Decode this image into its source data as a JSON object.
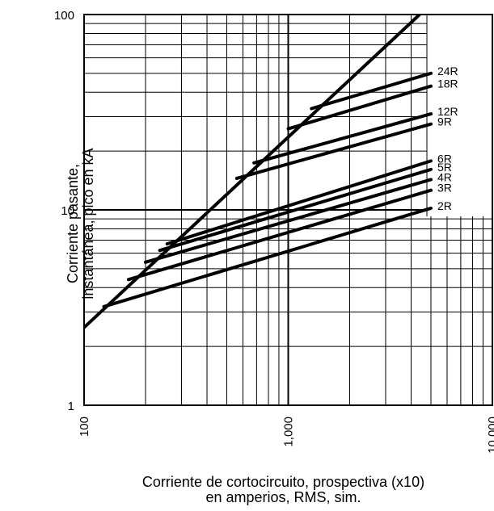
{
  "chart_data": {
    "type": "line",
    "title": "",
    "xlabel": [
      "Corriente de cortocircuito, prospectiva (x10)",
      "en amperios, RMS, sim."
    ],
    "ylabel": [
      "Corriente pasante,",
      "instantánea, pico en kA"
    ],
    "xscale": "log",
    "yscale": "log",
    "xlim": [
      100,
      10000
    ],
    "ylim": [
      1,
      100
    ],
    "x_ticks": [
      100,
      1000,
      10000
    ],
    "x_tick_labels": [
      "100",
      "1,000",
      "10,000"
    ],
    "y_ticks": [
      1,
      10,
      100
    ],
    "y_tick_labels": [
      "1",
      "10",
      "100"
    ],
    "grid": true,
    "series": [
      {
        "name": "",
        "points": [
          [
            100,
            2.5
          ],
          [
            4400,
            100
          ]
        ]
      },
      {
        "name": "2R",
        "points": [
          [
            125,
            3.2
          ],
          [
            5000,
            10.2
          ]
        ]
      },
      {
        "name": "3R",
        "points": [
          [
            165,
            4.4
          ],
          [
            5000,
            12.6
          ]
        ]
      },
      {
        "name": "4R",
        "points": [
          [
            200,
            5.4
          ],
          [
            5000,
            14.3
          ]
        ]
      },
      {
        "name": "5R",
        "points": [
          [
            235,
            6.2
          ],
          [
            5000,
            16.1
          ]
        ]
      },
      {
        "name": "6R",
        "points": [
          [
            255,
            6.7
          ],
          [
            5000,
            17.8
          ]
        ]
      },
      {
        "name": "9R",
        "points": [
          [
            560,
            14.5
          ],
          [
            5000,
            27.5
          ]
        ]
      },
      {
        "name": "12R",
        "points": [
          [
            680,
            17.4
          ],
          [
            5000,
            31
          ]
        ]
      },
      {
        "name": "18R",
        "points": [
          [
            1000,
            26
          ],
          [
            5000,
            43
          ]
        ]
      },
      {
        "name": "24R",
        "points": [
          [
            1300,
            33
          ],
          [
            5000,
            50
          ]
        ]
      }
    ]
  }
}
